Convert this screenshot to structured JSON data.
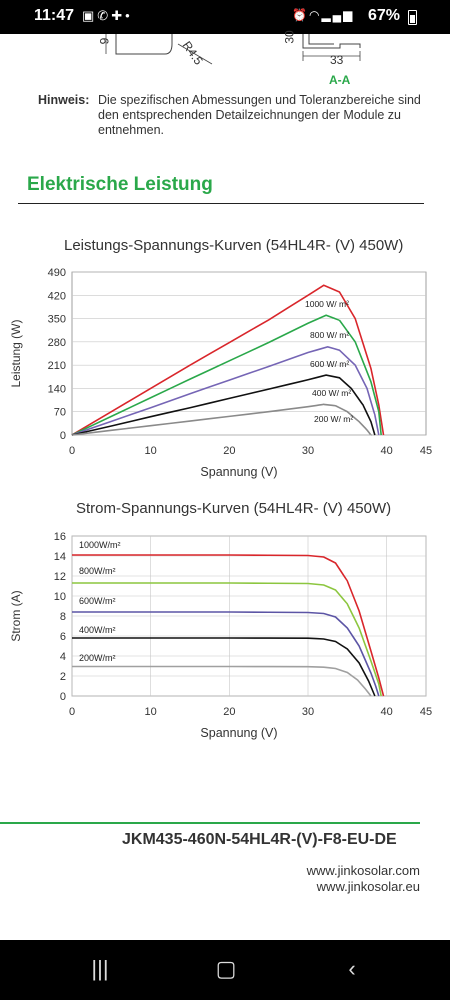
{
  "status_bar": {
    "time": "11:47",
    "battery_percent": "67%",
    "left_icons": [
      "image-icon",
      "phone-icon",
      "plus-icon",
      "dot-icon"
    ],
    "right_icons": [
      "alarm-icon",
      "wifi-icon",
      "signal-icon"
    ]
  },
  "drawing": {
    "dim_9": "9",
    "dim_r45": "R4.5",
    "dim_30": "30",
    "dim_33": "33",
    "section": "A-A"
  },
  "note": {
    "label": "Hinweis:",
    "text": "Die spezifischen Abmessungen und Toleranzbereiche sind den entsprechenden Detailzeichnungen der Module zu entnehmen."
  },
  "section_heading": "Elektrische Leistung",
  "chart_data": [
    {
      "type": "line",
      "title": "Leistungs-Spannungs-Kurven (54HL4R- (V) 450W)",
      "xlabel": "Spannung (V)",
      "ylabel": "Leistung (W)",
      "xlim": [
        0,
        45
      ],
      "ylim": [
        0,
        490
      ],
      "xticks": [
        0,
        10,
        20,
        30,
        40,
        45
      ],
      "yticks": [
        0,
        70,
        140,
        210,
        280,
        350,
        420,
        490
      ],
      "series": [
        {
          "name": "1000 W/ m²",
          "color": "#d9262b",
          "x": [
            0,
            5,
            10,
            15,
            20,
            25,
            30,
            32,
            34,
            36,
            38,
            39,
            39.6
          ],
          "y": [
            0,
            70,
            140,
            210,
            278,
            346,
            420,
            450,
            430,
            350,
            200,
            90,
            0
          ]
        },
        {
          "name": "800 W/ m²",
          "color": "#2aa84a",
          "x": [
            0,
            5,
            10,
            15,
            20,
            25,
            30,
            32.3,
            34,
            36,
            38,
            39,
            39.3
          ],
          "y": [
            0,
            56,
            112,
            168,
            223,
            278,
            336,
            360,
            345,
            280,
            160,
            70,
            0
          ]
        },
        {
          "name": "600 W/ m²",
          "color": "#7565b5",
          "x": [
            0,
            5,
            10,
            15,
            20,
            25,
            30,
            32.5,
            34,
            36,
            37.5,
            38.5,
            39.0
          ],
          "y": [
            0,
            41,
            82,
            124,
            165,
            206,
            248,
            265,
            255,
            210,
            140,
            60,
            0
          ]
        },
        {
          "name": "400 W/ m²",
          "color": "#111111",
          "x": [
            0,
            5,
            10,
            15,
            20,
            25,
            30,
            32.3,
            34,
            35.5,
            37,
            38.0,
            38.5
          ],
          "y": [
            0,
            27,
            55,
            82,
            110,
            138,
            166,
            180,
            172,
            140,
            90,
            40,
            0
          ]
        },
        {
          "name": "200 W/ m²",
          "color": "#8a8a8a",
          "x": [
            0,
            5,
            10,
            15,
            20,
            25,
            30,
            32,
            33.5,
            35,
            36.5,
            37.5,
            38.0
          ],
          "y": [
            0,
            14,
            28,
            42,
            56,
            70,
            85,
            92,
            88,
            70,
            40,
            15,
            0
          ]
        }
      ]
    },
    {
      "type": "line",
      "title": "Strom-Spannungs-Kurven (54HL4R- (V) 450W)",
      "xlabel": "Spannung (V)",
      "ylabel": "Strom (A)",
      "xlim": [
        0,
        45
      ],
      "ylim": [
        0,
        16
      ],
      "xticks": [
        0,
        10,
        20,
        30,
        40,
        45
      ],
      "yticks": [
        0,
        2,
        4,
        6,
        8,
        10,
        12,
        14,
        16
      ],
      "series": [
        {
          "name": "1000W/m²",
          "color": "#d9262b",
          "x": [
            0,
            10,
            20,
            30,
            32,
            33.5,
            35,
            36.5,
            38,
            39,
            39.6
          ],
          "y": [
            14.1,
            14.1,
            14.1,
            14.05,
            13.9,
            13.3,
            11.5,
            8.5,
            4.5,
            1.8,
            0
          ]
        },
        {
          "name": "800W/m²",
          "color": "#8cc63f",
          "x": [
            0,
            10,
            20,
            30,
            32,
            33.5,
            35,
            36.5,
            38,
            39,
            39.3
          ],
          "y": [
            11.3,
            11.3,
            11.3,
            11.25,
            11.1,
            10.6,
            9.2,
            6.8,
            3.5,
            1.2,
            0
          ]
        },
        {
          "name": "600W/m²",
          "color": "#5c55a5",
          "x": [
            0,
            10,
            20,
            30,
            32,
            33.5,
            35,
            36.5,
            38,
            38.6,
            39.0
          ],
          "y": [
            8.4,
            8.4,
            8.4,
            8.35,
            8.25,
            7.9,
            6.8,
            5.0,
            2.3,
            1.0,
            0
          ]
        },
        {
          "name": "400W/m²",
          "color": "#111111",
          "x": [
            0,
            10,
            20,
            30,
            32,
            33.5,
            35,
            36.5,
            37.7,
            38.5
          ],
          "y": [
            5.8,
            5.8,
            5.8,
            5.78,
            5.7,
            5.45,
            4.7,
            3.3,
            1.5,
            0
          ]
        },
        {
          "name": "200W/m²",
          "color": "#a0a0a0",
          "x": [
            0,
            10,
            20,
            30,
            32,
            33.5,
            35,
            36.3,
            37.3,
            38.0
          ],
          "y": [
            2.95,
            2.95,
            2.95,
            2.93,
            2.88,
            2.75,
            2.35,
            1.6,
            0.7,
            0
          ]
        }
      ]
    }
  ],
  "footer": {
    "model": "JKM435-460N-54HL4R-(V)-F8-EU-DE",
    "web1": "www.jinkosolar.com",
    "web2": "www.jinkosolar.eu"
  },
  "nav": {
    "recent_icon": "recent-apps-icon",
    "home_icon": "home-icon",
    "back_icon": "back-icon"
  }
}
